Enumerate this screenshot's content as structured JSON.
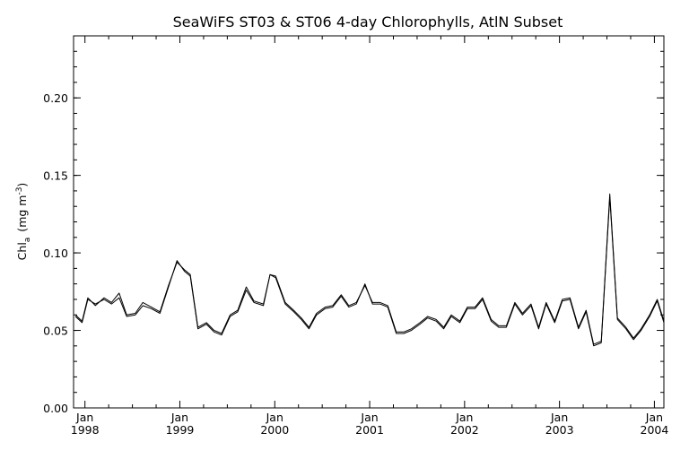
{
  "chart_data": {
    "type": "line",
    "title": "SeaWiFS ST03 & ST06 4-day Chlorophylls, AtlN Subset",
    "ylabel": "Chl",
    "ylabel_subscript": "a",
    "ylabel_units": "(mg m",
    "ylabel_units_exp": "-3",
    "ylabel_units_close": ")",
    "xlim": [
      1997.88,
      2004.1
    ],
    "ylim": [
      0.0,
      0.24
    ],
    "y_ticks": [
      0.0,
      0.05,
      0.1,
      0.15,
      0.2
    ],
    "y_tick_labels": [
      "0.00",
      "0.05",
      "0.10",
      "0.15",
      "0.20"
    ],
    "x_ticks": [
      {
        "value": 1998,
        "month": "Jan",
        "year": "1998"
      },
      {
        "value": 1999,
        "month": "Jan",
        "year": "1999"
      },
      {
        "value": 2000,
        "month": "Jan",
        "year": "2000"
      },
      {
        "value": 2001,
        "month": "Jan",
        "year": "2001"
      },
      {
        "value": 2002,
        "month": "Jan",
        "year": "2002"
      },
      {
        "value": 2003,
        "month": "Jan",
        "year": "2003"
      },
      {
        "value": 2004,
        "month": "Jan",
        "year": "2004"
      }
    ],
    "grid": false,
    "series": [
      {
        "x": [
          1997.9,
          1997.97,
          1998.03,
          1998.11,
          1998.2,
          1998.28,
          1998.36,
          1998.44,
          1998.53,
          1998.61,
          1998.7,
          1998.79,
          1998.88,
          1998.97,
          1999.05,
          1999.11,
          1999.19,
          1999.28,
          1999.36,
          1999.44,
          1999.53,
          1999.61,
          1999.7,
          1999.78,
          1999.88,
          1999.95,
          2000.01,
          2000.11,
          2000.2,
          2000.28,
          2000.36,
          2000.44,
          2000.53,
          2000.61,
          2000.7,
          2000.78,
          2000.86,
          2000.95,
          2001.03,
          2001.11,
          2001.19,
          2001.28,
          2001.36,
          2001.44,
          2001.53,
          2001.61,
          2001.7,
          2001.78,
          2001.86,
          2001.95,
          2002.03,
          2002.11,
          2002.19,
          2002.28,
          2002.36,
          2002.44,
          2002.53,
          2002.61,
          2002.7,
          2002.78,
          2002.86,
          2002.95,
          2003.03,
          2003.11,
          2003.2,
          2003.28,
          2003.36,
          2003.44,
          2003.53,
          2003.61,
          2003.7,
          2003.78,
          2003.86,
          2003.95,
          2004.03,
          2004.1
        ],
        "y": [
          0.06,
          0.056,
          0.071,
          0.066,
          0.071,
          0.068,
          0.074,
          0.06,
          0.061,
          0.068,
          0.065,
          0.062,
          0.079,
          0.094,
          0.089,
          0.086,
          0.052,
          0.055,
          0.05,
          0.048,
          0.06,
          0.063,
          0.078,
          0.069,
          0.067,
          0.086,
          0.085,
          0.068,
          0.063,
          0.058,
          0.052,
          0.061,
          0.065,
          0.066,
          0.073,
          0.066,
          0.068,
          0.079,
          0.068,
          0.068,
          0.066,
          0.049,
          0.049,
          0.051,
          0.055,
          0.059,
          0.057,
          0.052,
          0.06,
          0.056,
          0.065,
          0.065,
          0.071,
          0.057,
          0.053,
          0.053,
          0.068,
          0.061,
          0.067,
          0.052,
          0.068,
          0.056,
          0.07,
          0.071,
          0.052,
          0.063,
          0.041,
          0.043,
          0.138,
          0.058,
          0.052,
          0.045,
          0.051,
          0.06,
          0.07,
          0.056
        ]
      },
      {
        "x": [
          1997.9,
          1997.97,
          1998.03,
          1998.11,
          1998.2,
          1998.28,
          1998.36,
          1998.44,
          1998.53,
          1998.61,
          1998.7,
          1998.79,
          1998.88,
          1998.97,
          1999.05,
          1999.11,
          1999.19,
          1999.28,
          1999.36,
          1999.44,
          1999.53,
          1999.61,
          1999.7,
          1999.78,
          1999.88,
          1999.95,
          2000.01,
          2000.11,
          2000.2,
          2000.28,
          2000.36,
          2000.44,
          2000.53,
          2000.61,
          2000.7,
          2000.78,
          2000.86,
          2000.95,
          2001.03,
          2001.11,
          2001.19,
          2001.28,
          2001.36,
          2001.44,
          2001.53,
          2001.61,
          2001.7,
          2001.78,
          2001.86,
          2001.95,
          2002.03,
          2002.11,
          2002.19,
          2002.28,
          2002.36,
          2002.44,
          2002.53,
          2002.61,
          2002.7,
          2002.78,
          2002.86,
          2002.95,
          2003.03,
          2003.11,
          2003.2,
          2003.28,
          2003.36,
          2003.44,
          2003.53,
          2003.61,
          2003.7,
          2003.78,
          2003.86,
          2003.95,
          2004.03,
          2004.1
        ],
        "y": [
          0.059,
          0.055,
          0.07,
          0.067,
          0.07,
          0.067,
          0.071,
          0.059,
          0.06,
          0.066,
          0.064,
          0.061,
          0.078,
          0.095,
          0.088,
          0.085,
          0.051,
          0.054,
          0.049,
          0.047,
          0.059,
          0.062,
          0.076,
          0.068,
          0.066,
          0.086,
          0.084,
          0.067,
          0.062,
          0.057,
          0.051,
          0.06,
          0.064,
          0.065,
          0.072,
          0.065,
          0.067,
          0.08,
          0.067,
          0.067,
          0.065,
          0.048,
          0.048,
          0.05,
          0.054,
          0.058,
          0.056,
          0.051,
          0.059,
          0.055,
          0.064,
          0.064,
          0.07,
          0.056,
          0.052,
          0.052,
          0.067,
          0.06,
          0.066,
          0.051,
          0.067,
          0.055,
          0.069,
          0.07,
          0.051,
          0.062,
          0.04,
          0.042,
          0.136,
          0.057,
          0.051,
          0.044,
          0.05,
          0.059,
          0.069,
          0.055
        ]
      }
    ]
  }
}
